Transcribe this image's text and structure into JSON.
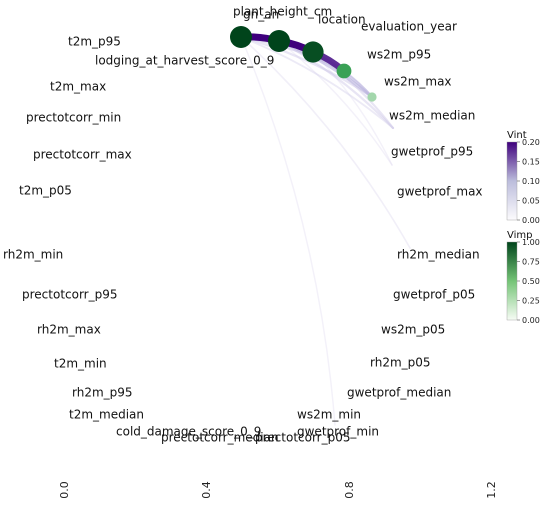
{
  "nodes": [
    {
      "id": "plant_height_cm",
      "label": "plant_height_cm",
      "vimp": 0
    },
    {
      "id": "gn_an",
      "label": "gn_an",
      "vimp": 0
    },
    {
      "id": "location",
      "label": "location",
      "vimp": 1.0
    },
    {
      "id": "evaluation_year",
      "label": "evaluation_year",
      "vimp": 0.95
    },
    {
      "id": "ws2m_p95",
      "label": "ws2m_p95",
      "vimp": 0.55
    },
    {
      "id": "ws2m_max",
      "label": "ws2m_max",
      "vimp": 0.2
    },
    {
      "id": "ws2m_median",
      "label": "ws2m_median",
      "vimp": 0
    },
    {
      "id": "gwetprof_p95",
      "label": "gwetprof_p95",
      "vimp": 0
    },
    {
      "id": "gwetprof_max",
      "label": "gwetprof_max",
      "vimp": 0
    },
    {
      "id": "rh2m_median",
      "label": "rh2m_median",
      "vimp": 0
    },
    {
      "id": "gwetprof_p05",
      "label": "gwetprof_p05",
      "vimp": 0
    },
    {
      "id": "ws2m_p05",
      "label": "ws2m_p05",
      "vimp": 0
    },
    {
      "id": "rh2m_p05",
      "label": "rh2m_p05",
      "vimp": 0
    },
    {
      "id": "gwetprof_median",
      "label": "gwetprof_median",
      "vimp": 0
    },
    {
      "id": "ws2m_min",
      "label": "ws2m_min",
      "vimp": 0
    },
    {
      "id": "gwetprof_min",
      "label": "gwetprof_min",
      "vimp": 0
    },
    {
      "id": "prectotcorr_p05",
      "label": "prectotcorr_p05",
      "vimp": 0
    },
    {
      "id": "prectotcorr_median",
      "label": "prectotcorr_median",
      "vimp": 0
    },
    {
      "id": "cold_damage_score_0_9",
      "label": "cold_damage_score_0_9",
      "vimp": 0
    },
    {
      "id": "t2m_median",
      "label": "t2m_median",
      "vimp": 0
    },
    {
      "id": "rh2m_p95",
      "label": "rh2m_p95",
      "vimp": 0
    },
    {
      "id": "t2m_min",
      "label": "t2m_min",
      "vimp": 0
    },
    {
      "id": "rh2m_max",
      "label": "rh2m_max",
      "vimp": 0
    },
    {
      "id": "prectotcorr_p95",
      "label": "prectotcorr_p95",
      "vimp": 0
    },
    {
      "id": "rh2m_min",
      "label": "rh2m_min",
      "vimp": 0
    },
    {
      "id": "t2m_p05",
      "label": "t2m_p05",
      "vimp": 0
    },
    {
      "id": "prectotcorr_max",
      "label": "prectotcorr_max",
      "vimp": 0
    },
    {
      "id": "prectotcorr_min",
      "label": "prectotcorr_min",
      "vimp": 0
    },
    {
      "id": "t2m_max",
      "label": "t2m_max",
      "vimp": 0
    },
    {
      "id": "lodging_at_harvest_score_0_9",
      "label": "lodging_at_harvest_score_0_9",
      "vimp": 0
    },
    {
      "id": "t2m_p95",
      "label": "t2m_p95",
      "vimp": 1.0
    }
  ],
  "edges": [
    {
      "from": "t2m_p95",
      "to": "location",
      "vint": 0.2
    },
    {
      "from": "location",
      "to": "evaluation_year",
      "vint": 0.2
    },
    {
      "from": "evaluation_year",
      "to": "ws2m_p95",
      "vint": 0.18
    },
    {
      "from": "t2m_p95",
      "to": "evaluation_year",
      "vint": 0.1
    },
    {
      "from": "location",
      "to": "ws2m_p95",
      "vint": 0.08
    },
    {
      "from": "location",
      "to": "ws2m_max",
      "vint": 0.07
    },
    {
      "from": "evaluation_year",
      "to": "ws2m_max",
      "vint": 0.07
    },
    {
      "from": "t2m_p95",
      "to": "ws2m_p95",
      "vint": 0.05
    },
    {
      "from": "t2m_p95",
      "to": "ws2m_max",
      "vint": 0.04
    },
    {
      "from": "location",
      "to": "ws2m_median",
      "vint": 0.04
    },
    {
      "from": "evaluation_year",
      "to": "ws2m_median",
      "vint": 0.04
    },
    {
      "from": "t2m_p95",
      "to": "ws2m_median",
      "vint": 0.03
    },
    {
      "from": "ws2m_p95",
      "to": "ws2m_max",
      "vint": 0.03
    },
    {
      "from": "t2m_p95",
      "to": "gwetprof_max",
      "vint": 0.02
    },
    {
      "from": "location",
      "to": "gwetprof_p95",
      "vint": 0.015
    },
    {
      "from": "evaluation_year",
      "to": "gwetprof_p95",
      "vint": 0.015
    },
    {
      "from": "t2m_p95",
      "to": "ws2m_min",
      "vint": 0.015
    }
  ],
  "x_axis_ticks": [
    "0.0",
    "0.4",
    "0.8",
    "1.2"
  ],
  "legend_vint": {
    "title": "Vint",
    "ticks": [
      "0.20",
      "0.15",
      "0.10",
      "0.05",
      "0.00"
    ],
    "max": 0.2
  },
  "legend_vimp": {
    "title": "Vimp",
    "ticks": [
      "1.00",
      "0.75",
      "0.50",
      "0.25",
      "0.00"
    ],
    "max": 1.0
  }
}
